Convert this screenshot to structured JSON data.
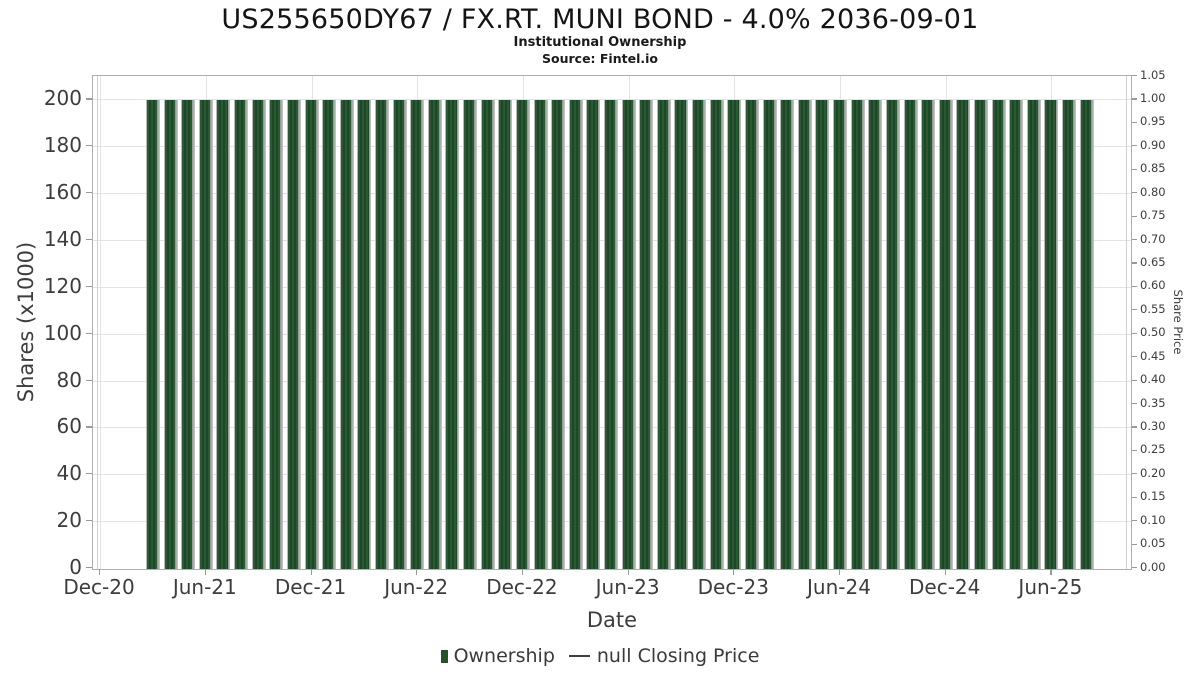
{
  "title": "US255650DY67 / FX.RT. MUNI BOND - 4.0% 2036-09-01",
  "subtitle": "Institutional Ownership",
  "source": "Source: Fintel.io",
  "chart_data": {
    "type": "bar",
    "title": "US255650DY67 / FX.RT. MUNI BOND - 4.0% 2036-09-01",
    "subtitle": "Institutional Ownership",
    "source": "Source: Fintel.io",
    "xlabel": "Date",
    "ylabel_left": "Shares (x1000)",
    "ylabel_right": "Share Price",
    "categories": [
      "Mar-21",
      "Apr-21",
      "May-21",
      "Jun-21",
      "Jul-21",
      "Aug-21",
      "Sep-21",
      "Oct-21",
      "Nov-21",
      "Dec-21",
      "Jan-22",
      "Feb-22",
      "Mar-22",
      "Apr-22",
      "May-22",
      "Jun-22",
      "Jul-22",
      "Aug-22",
      "Sep-22",
      "Oct-22",
      "Nov-22",
      "Dec-22",
      "Jan-23",
      "Feb-23",
      "Mar-23",
      "Apr-23",
      "May-23",
      "Jun-23",
      "Jul-23",
      "Aug-23",
      "Sep-23",
      "Oct-23",
      "Nov-23",
      "Dec-23",
      "Jan-24",
      "Feb-24",
      "Mar-24",
      "Apr-24",
      "May-24",
      "Jun-24",
      "Jul-24",
      "Aug-24",
      "Sep-24",
      "Oct-24",
      "Nov-24",
      "Dec-24",
      "Jan-25",
      "Feb-25",
      "Mar-25",
      "Apr-25",
      "May-25",
      "Jun-25",
      "Jul-25",
      "Aug-25"
    ],
    "series": [
      {
        "name": "Ownership",
        "values": [
          200,
          200,
          200,
          200,
          200,
          200,
          200,
          200,
          200,
          200,
          200,
          200,
          200,
          200,
          200,
          200,
          200,
          200,
          200,
          200,
          200,
          200,
          200,
          200,
          200,
          200,
          200,
          200,
          200,
          200,
          200,
          200,
          200,
          200,
          200,
          200,
          200,
          200,
          200,
          200,
          200,
          200,
          200,
          200,
          200,
          200,
          200,
          200,
          200,
          200,
          200,
          200,
          200,
          200
        ]
      },
      {
        "name": "null Closing Price",
        "values": []
      }
    ],
    "x_tick_labels": [
      "Dec-20",
      "Jun-21",
      "Dec-21",
      "Jun-22",
      "Dec-22",
      "Jun-23",
      "Dec-23",
      "Jun-24",
      "Dec-24",
      "Jun-25"
    ],
    "x_tick_month_index": [
      0,
      6,
      12,
      18,
      24,
      30,
      36,
      42,
      48,
      54
    ],
    "bar_month_index_start": 3,
    "x_lim_month_index": [
      -0.4,
      58.46
    ],
    "y_left_ticks": [
      0,
      20,
      40,
      60,
      80,
      100,
      120,
      140,
      160,
      180,
      200
    ],
    "y_left_lim": [
      0,
      210
    ],
    "y_right_tick_labels": [
      "0.00",
      "0.05",
      "0.10",
      "0.15",
      "0.20",
      "0.25",
      "0.30",
      "0.35",
      "0.40",
      "0.45",
      "0.50",
      "0.55",
      "0.60",
      "0.65",
      "0.70",
      "0.75",
      "0.80",
      "0.85",
      "0.90",
      "0.95",
      "1.00",
      "1.05"
    ],
    "y_right_lim": [
      0,
      1.05
    ],
    "grid": true,
    "legend_position": "bottom-center",
    "legend": [
      {
        "label": "Ownership",
        "marker": "square",
        "color": "#24512b"
      },
      {
        "label": "null Closing Price",
        "marker": "line",
        "color": "#3f3f3f"
      }
    ],
    "colors": {
      "bar": "#24512b",
      "bar_edge": "#9c9c9c",
      "grid": "#e3e3e3",
      "frame": "#aeaeae",
      "text": "#3d3d3d"
    }
  }
}
